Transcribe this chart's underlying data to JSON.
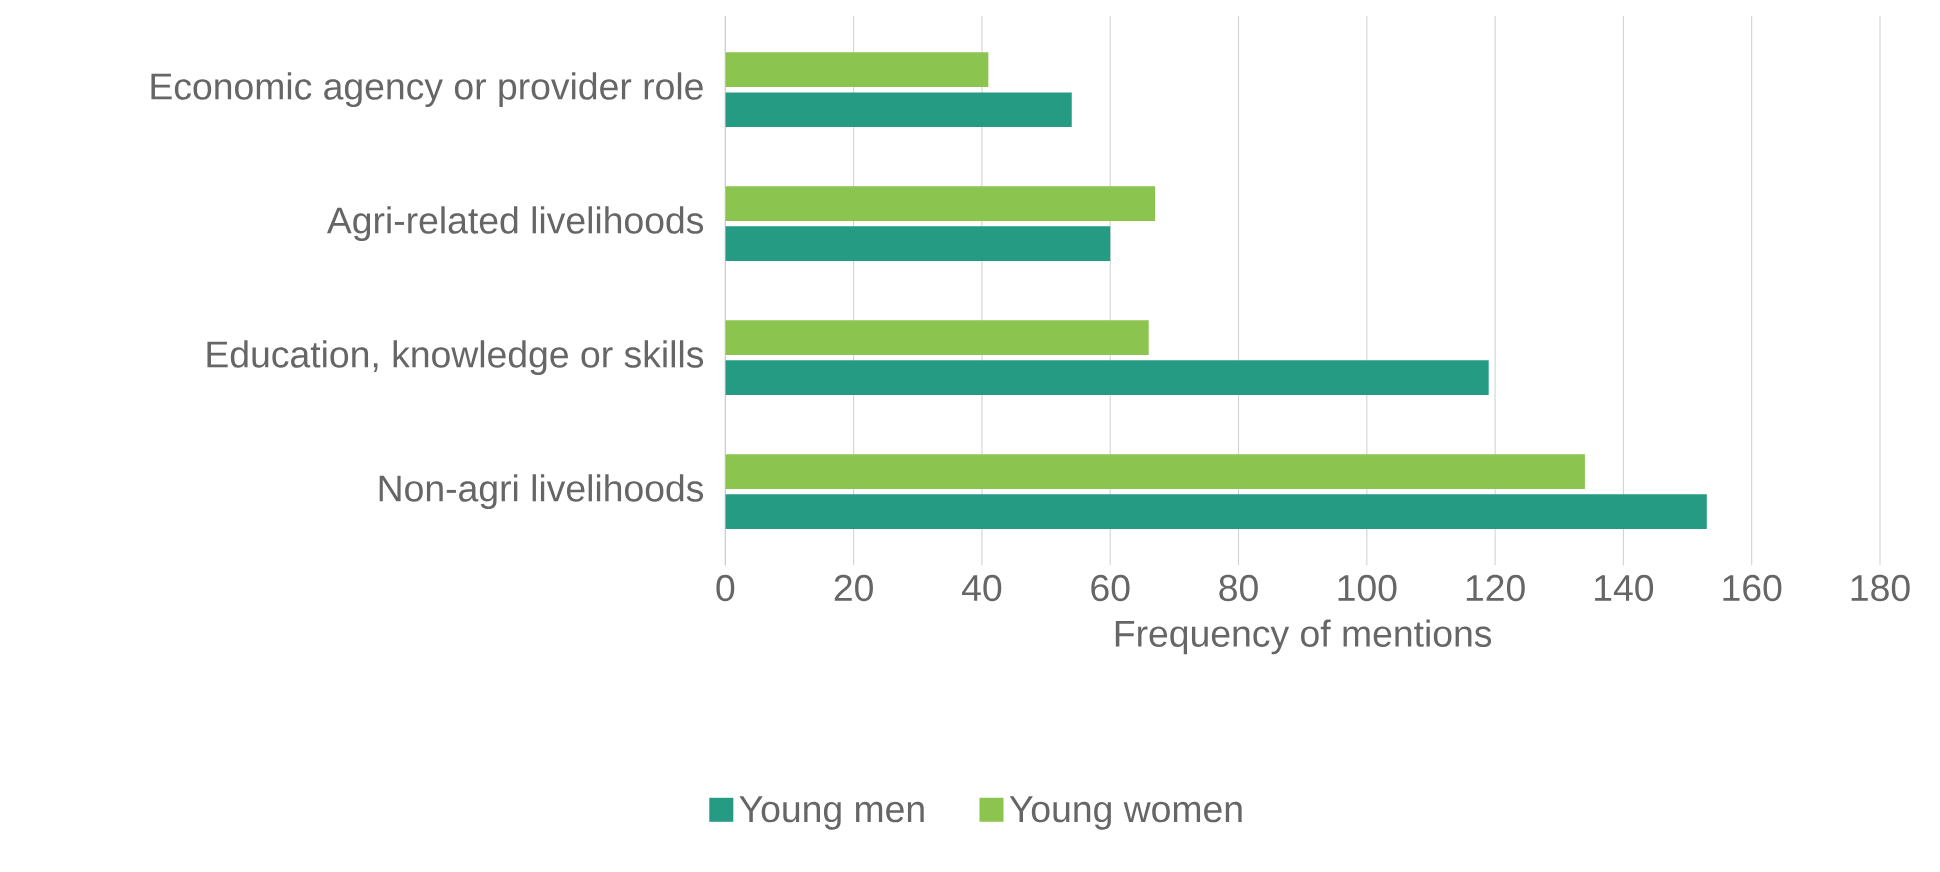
{
  "chart_data": {
    "type": "bar",
    "orientation": "horizontal",
    "xlabel": "Frequency of mentions",
    "categories": [
      "Economic agency or provider role",
      "Agri-related livelihoods",
      "Education, knowledge or skills",
      "Non-agri livelihoods"
    ],
    "series": [
      {
        "name": "Young men",
        "color": "#259b83",
        "values": [
          54,
          60,
          119,
          153
        ]
      },
      {
        "name": "Young women",
        "color": "#8bc550",
        "values": [
          41,
          67,
          66,
          134
        ]
      }
    ],
    "xlim": [
      0,
      180
    ],
    "xticks": [
      0,
      20,
      40,
      60,
      80,
      100,
      120,
      140,
      160,
      180
    ],
    "grid": "x",
    "legend": "bottom"
  }
}
